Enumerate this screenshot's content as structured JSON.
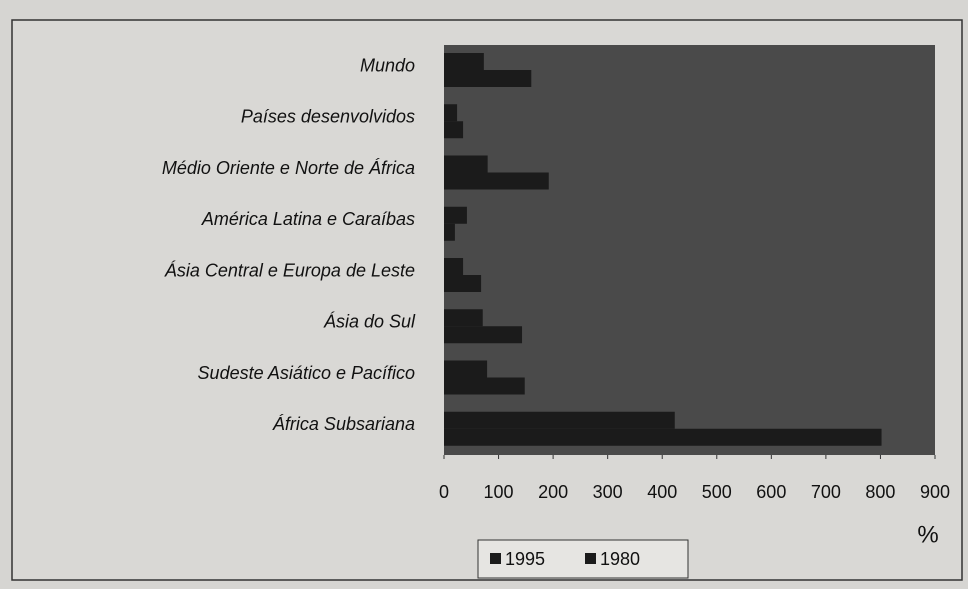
{
  "chart_data": {
    "type": "hbar",
    "categories": [
      "Mundo",
      "Países desenvolvidos",
      "Médio Oriente e Norte de África",
      "América Latina e Caraíbas",
      "Ásia Central e Europa de Leste",
      "Ásia do Sul",
      "Sudeste Asiático e Pacífico",
      "África Subsariana"
    ],
    "series": [
      {
        "name": "1995",
        "color": "#1b1b1b",
        "values": [
          73,
          24,
          80,
          42,
          35,
          71,
          79,
          423
        ]
      },
      {
        "name": "1980",
        "color": "#1b1b1b",
        "values": [
          160,
          35,
          192,
          20,
          68,
          143,
          148,
          802
        ]
      }
    ],
    "xlabel": "%",
    "xlim": [
      0,
      900
    ],
    "xticks": [
      0,
      100,
      200,
      300,
      400,
      500,
      600,
      700,
      800,
      900
    ],
    "legend": "bottom"
  }
}
